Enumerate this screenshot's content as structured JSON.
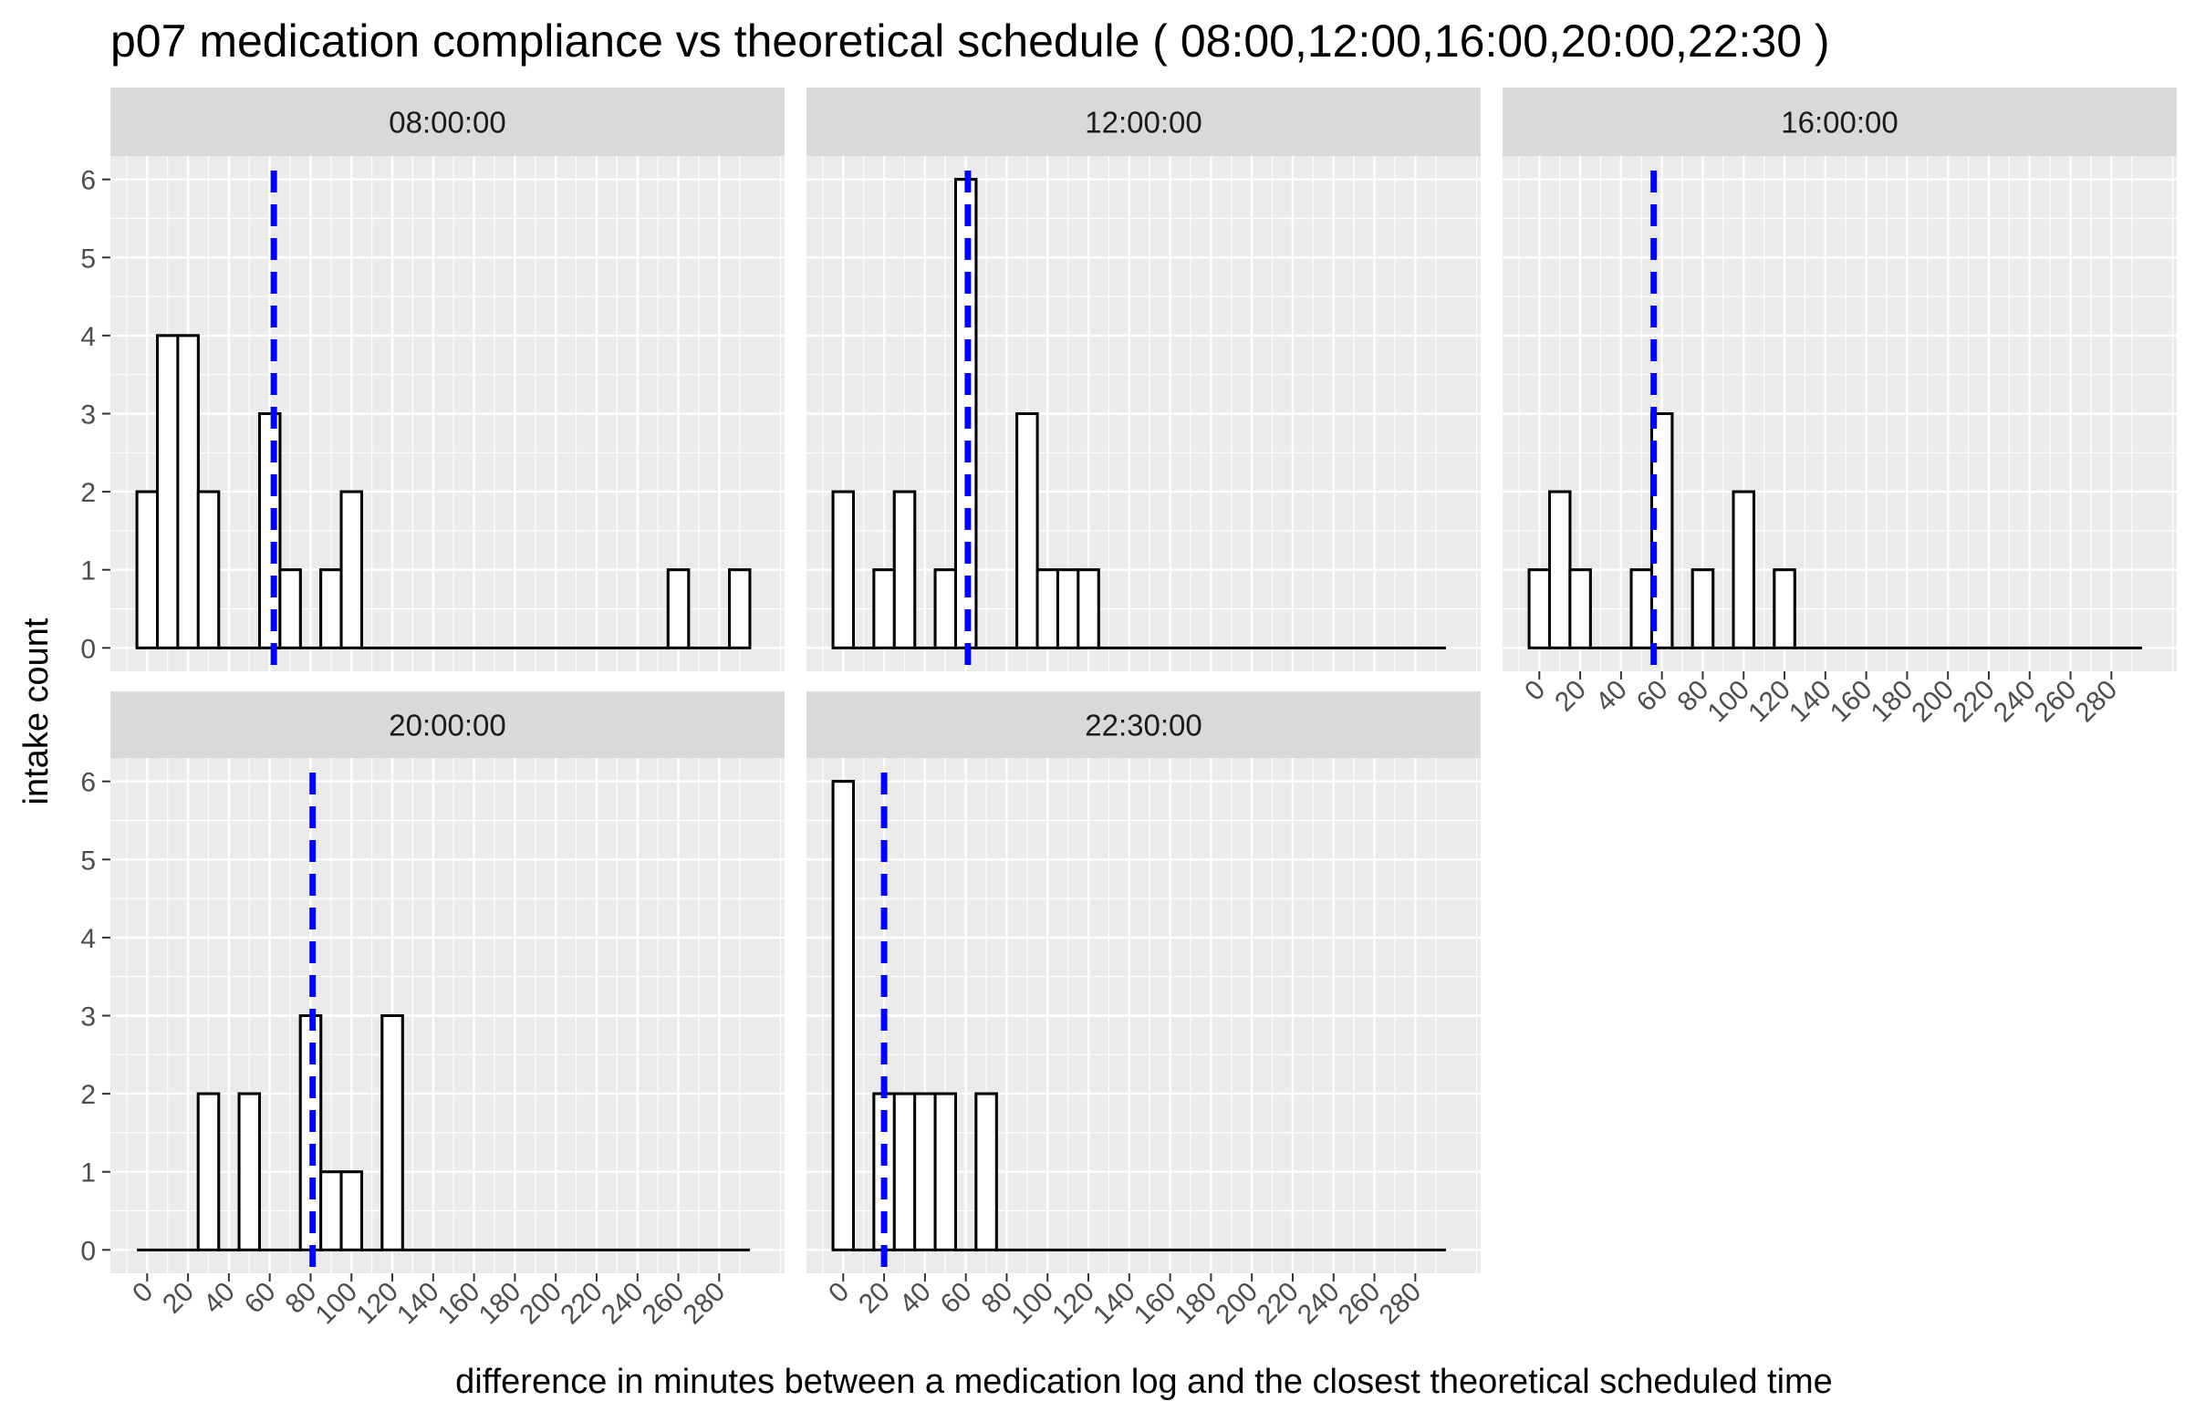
{
  "chart_data": {
    "type": "bar",
    "title": "p07  medication compliance vs theoretical schedule ( 08:00,12:00,16:00,20:00,22:30 )",
    "xlabel": "difference in minutes between a medication log and the closest theoretical scheduled time",
    "ylabel": "intake count",
    "xlim": [
      -18,
      312
    ],
    "ylim": [
      -0.3,
      6.3
    ],
    "x_ticks": [
      0,
      20,
      40,
      60,
      80,
      100,
      120,
      140,
      160,
      180,
      200,
      220,
      240,
      260,
      280
    ],
    "y_ticks": [
      0,
      1,
      2,
      3,
      4,
      5,
      6
    ],
    "bin_width": 10,
    "bin_start": -5,
    "bin_count": 30,
    "colors": {
      "panel_bg": "#ebebeb",
      "grid": "#ffffff",
      "strip_bg": "#d9d9d9",
      "bar_fill": "#ffffff",
      "bar_outline": "#000000",
      "mean_line": "#0000ff"
    },
    "facets": [
      {
        "label": "08:00:00",
        "mean_line": 62,
        "counts": [
          2,
          4,
          4,
          2,
          0,
          0,
          3,
          1,
          0,
          1,
          2,
          0,
          0,
          0,
          0,
          0,
          0,
          0,
          0,
          0,
          0,
          0,
          0,
          0,
          0,
          0,
          1,
          0,
          0,
          1
        ]
      },
      {
        "label": "12:00:00",
        "mean_line": 61,
        "counts": [
          2,
          0,
          1,
          2,
          0,
          1,
          6,
          0,
          0,
          3,
          1,
          1,
          1,
          0,
          0,
          0,
          0,
          0,
          0,
          0,
          0,
          0,
          0,
          0,
          0,
          0,
          0,
          0,
          0,
          0
        ]
      },
      {
        "label": "16:00:00",
        "mean_line": 56,
        "counts": [
          1,
          2,
          1,
          0,
          0,
          1,
          3,
          0,
          1,
          0,
          2,
          0,
          1,
          0,
          0,
          0,
          0,
          0,
          0,
          0,
          0,
          0,
          0,
          0,
          0,
          0,
          0,
          0,
          0,
          0
        ]
      },
      {
        "label": "20:00:00",
        "mean_line": 81,
        "counts": [
          0,
          0,
          0,
          2,
          0,
          2,
          0,
          0,
          3,
          1,
          1,
          0,
          3,
          0,
          0,
          0,
          0,
          0,
          0,
          0,
          0,
          0,
          0,
          0,
          0,
          0,
          0,
          0,
          0,
          0
        ]
      },
      {
        "label": "22:30:00",
        "mean_line": 20,
        "counts": [
          6,
          0,
          2,
          2,
          2,
          2,
          0,
          2,
          0,
          0,
          0,
          0,
          0,
          0,
          0,
          0,
          0,
          0,
          0,
          0,
          0,
          0,
          0,
          0,
          0,
          0,
          0,
          0,
          0,
          0
        ]
      }
    ]
  }
}
